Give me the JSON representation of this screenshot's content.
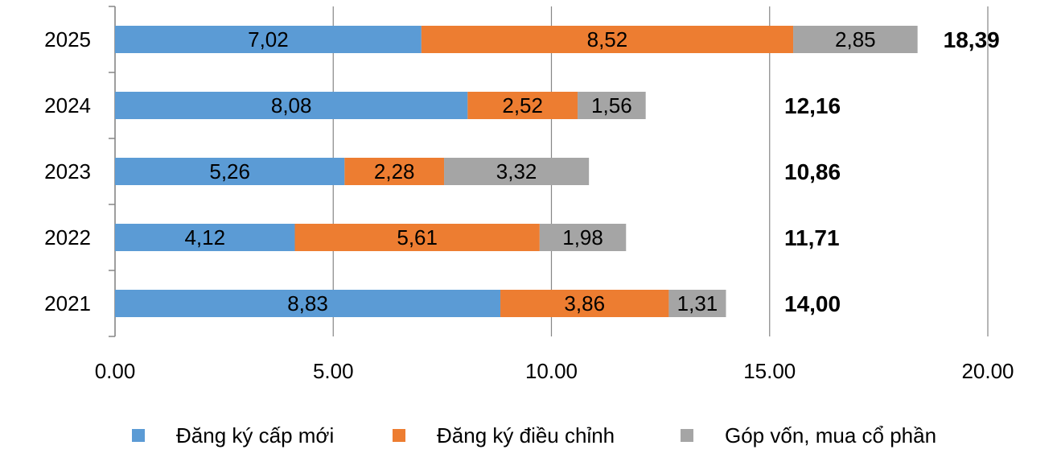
{
  "chart_data": {
    "type": "bar",
    "orientation": "horizontal",
    "stacked": true,
    "categories": [
      "2025",
      "2024",
      "2023",
      "2022",
      "2021"
    ],
    "series": [
      {
        "name": "Đăng ký cấp mới",
        "values": [
          7.02,
          8.08,
          5.26,
          4.12,
          8.83
        ],
        "labels": [
          "7,02",
          "8,08",
          "5,26",
          "4,12",
          "8,83"
        ],
        "color": "#5B9BD5"
      },
      {
        "name": "Đăng ký điều chỉnh",
        "values": [
          8.52,
          2.52,
          2.28,
          5.61,
          3.86
        ],
        "labels": [
          "8,52",
          "2,52",
          "2,28",
          "5,61",
          "3,86"
        ],
        "color": "#ED7D31"
      },
      {
        "name": "Góp vốn, mua cổ phần",
        "values": [
          2.85,
          1.56,
          3.32,
          1.98,
          1.31
        ],
        "labels": [
          "2,85",
          "1,56",
          "3,32",
          "1,98",
          "1,31"
        ],
        "color": "#A5A5A5"
      }
    ],
    "totals": [
      "18,39",
      "12,16",
      "10,86",
      "11,71",
      "14,00"
    ],
    "xlim": [
      0,
      20
    ],
    "xticks": [
      "0.00",
      "5.00",
      "10.00",
      "15.00",
      "20.00"
    ],
    "grid": "vertical",
    "legend_position": "bottom"
  }
}
